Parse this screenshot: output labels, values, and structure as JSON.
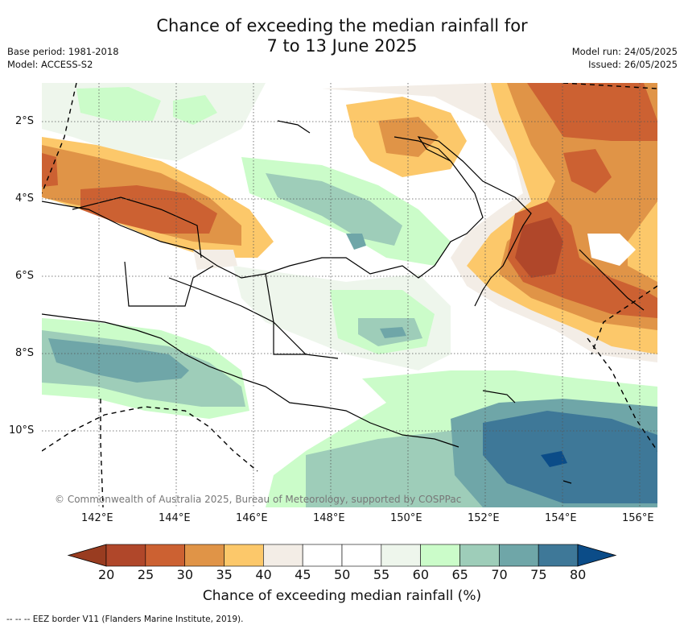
{
  "title_line1": "Chance of exceeding the median rainfall for",
  "title_line2": "7 to 13 June 2025",
  "meta_left": [
    "Base period: 1981-2018",
    "Model: ACCESS-S2"
  ],
  "meta_right": [
    "Model run: 24/05/2025",
    "Issued: 26/05/2025"
  ],
  "credit": "© Commonwealth of Australia 2025, Bureau of Meteorology, supported by COSPPac",
  "lon_labels": [
    "142°E",
    "144°E",
    "146°E",
    "148°E",
    "150°E",
    "152°E",
    "154°E",
    "156°E"
  ],
  "lat_labels": [
    "2°S",
    "4°S",
    "6°S",
    "8°S",
    "10°S"
  ],
  "colorbar": {
    "title": "Chance of exceeding median rainfall (%)",
    "ticks": [
      "20",
      "25",
      "30",
      "35",
      "40",
      "45",
      "50",
      "55",
      "60",
      "65",
      "70",
      "75",
      "80"
    ],
    "colors": [
      "#b0472a",
      "#cc6132",
      "#e09447",
      "#fcc86a",
      "#f3ede6",
      "#ffffff",
      "#ffffff",
      "#eef6ec",
      "#cbfcc9",
      "#9ecdb9",
      "#6fa6a8",
      "#3e7898"
    ],
    "low_extend_color": "#993c20",
    "high_extend_color": "#0b4c88"
  },
  "footnote": "-- -- -- EEZ border V11 (Flanders Marine Institute, 2019)."
}
